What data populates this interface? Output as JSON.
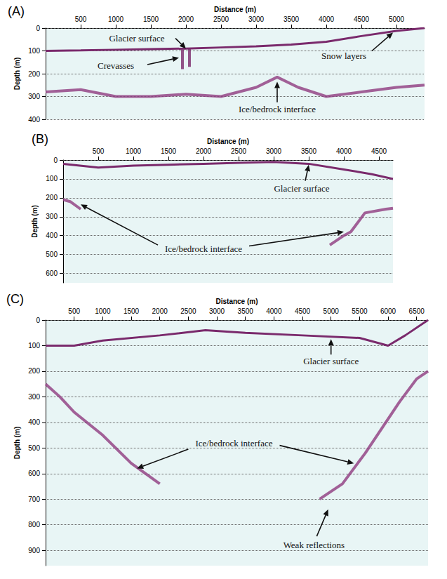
{
  "chart_data": [
    {
      "type": "line",
      "title": "(A)",
      "x_label": "Distance (m)",
      "y_label": "Depth (m)",
      "xlim": [
        0,
        5400
      ],
      "xticks": [
        500,
        1000,
        1500,
        2000,
        2500,
        3000,
        3500,
        4000,
        4500,
        5000
      ],
      "ylim": [
        0,
        400
      ],
      "yticks": [
        0,
        100,
        200,
        300,
        400
      ],
      "grid": true,
      "series": [
        {
          "color": "#7a2a6c",
          "x": [
            0,
            500,
            1000,
            1500,
            2000,
            2500,
            3000,
            3500,
            4000,
            4500,
            5000,
            5400
          ],
          "values": [
            100,
            98,
            95,
            92,
            90,
            85,
            80,
            72,
            60,
            35,
            12,
            0
          ]
        },
        {
          "color": "#8e3b7f",
          "x": [
            0,
            500,
            1000,
            1500,
            2000,
            2500,
            3000,
            3300,
            3600,
            4000,
            4500,
            5000,
            5400
          ],
          "values": [
            280,
            270,
            300,
            300,
            290,
            300,
            260,
            215,
            260,
            300,
            280,
            260,
            250
          ]
        },
        {
          "color": "#7a2a6c",
          "x": [
            1950,
            1950
          ],
          "values": [
            95,
            180
          ]
        },
        {
          "color": "#7a2a6c",
          "x": [
            2050,
            2050
          ],
          "values": [
            92,
            170
          ]
        }
      ],
      "annotations": [
        {
          "text": "Glacier surface",
          "x": 1300,
          "y": 45,
          "arrows": [
            [
              [
                1850,
                45
              ],
              [
                2000,
                90
              ]
            ]
          ]
        },
        {
          "text": "Crevasses",
          "x": 1000,
          "y": 165,
          "arrows": [
            [
              [
                1450,
                160
              ],
              [
                1900,
                130
              ]
            ]
          ]
        },
        {
          "text": "Ice/bedrock interface",
          "x": 3300,
          "y": 355,
          "arrows": [
            [
              [
                3300,
                325
              ],
              [
                3300,
                235
              ]
            ]
          ]
        },
        {
          "text": "Snow layers",
          "x": 4250,
          "y": 120,
          "arrows": [
            [
              [
                4650,
                100
              ],
              [
                4950,
                20
              ]
            ]
          ]
        }
      ]
    },
    {
      "type": "line",
      "title": "(B)",
      "x_label": "Distance (m)",
      "y_label": "Depth (m)",
      "xlim": [
        0,
        4700
      ],
      "xticks": [
        500,
        1000,
        1500,
        2000,
        2500,
        3000,
        3500,
        4000,
        4500
      ],
      "ylim": [
        0,
        650
      ],
      "yticks": [
        0,
        100,
        200,
        300,
        400,
        500,
        600
      ],
      "grid": true,
      "series": [
        {
          "color": "#7a2a6c",
          "x": [
            0,
            500,
            1000,
            1500,
            2000,
            2500,
            3000,
            3500,
            4000,
            4400,
            4700
          ],
          "values": [
            20,
            40,
            30,
            25,
            20,
            15,
            10,
            20,
            50,
            75,
            100
          ]
        },
        {
          "color": "#8e3b7f",
          "x": [
            0,
            100,
            250
          ],
          "values": [
            210,
            220,
            260
          ]
        },
        {
          "color": "#8e3b7f",
          "x": [
            3800,
            4000,
            4100,
            4300,
            4600,
            4700
          ],
          "values": [
            450,
            400,
            380,
            280,
            260,
            255
          ]
        }
      ],
      "annotations": [
        {
          "text": "Glacier surface",
          "x": 3400,
          "y": 150,
          "arrows": [
            [
              [
                3450,
                110
              ],
              [
                3500,
                25
              ]
            ]
          ]
        },
        {
          "text": "Ice/bedrock interface",
          "x": 2000,
          "y": 470,
          "arrows": [
            [
              [
                1350,
                450
              ],
              [
                250,
                235
              ]
            ],
            [
              [
                2650,
                455
              ],
              [
                4000,
                380
              ]
            ]
          ]
        }
      ]
    },
    {
      "type": "line",
      "title": "(C)",
      "x_label": "Distance (m)",
      "y_label": "Depth (m)",
      "xlim": [
        0,
        6700
      ],
      "xticks": [
        500,
        1000,
        1500,
        2000,
        2500,
        3000,
        3500,
        4000,
        4500,
        5000,
        5500,
        6000,
        6500
      ],
      "ylim": [
        0,
        960
      ],
      "yticks": [
        0,
        100,
        200,
        300,
        400,
        500,
        600,
        700,
        800,
        900
      ],
      "grid": true,
      "series": [
        {
          "color": "#7a2a6c",
          "x": [
            0,
            500,
            1000,
            2000,
            2800,
            3500,
            4500,
            5500,
            6000,
            6300,
            6700
          ],
          "values": [
            100,
            100,
            80,
            60,
            40,
            50,
            60,
            70,
            100,
            60,
            0
          ]
        },
        {
          "color": "#8e3b7f",
          "x": [
            0,
            250,
            500,
            1000,
            1500,
            2000
          ],
          "values": [
            250,
            300,
            360,
            450,
            560,
            640
          ]
        },
        {
          "color": "#8e3b7f",
          "x": [
            4800,
            5200,
            5600,
            5900,
            6200,
            6500,
            6700
          ],
          "values": [
            700,
            640,
            520,
            420,
            320,
            230,
            200
          ]
        }
      ],
      "annotations": [
        {
          "text": "Glacier surface",
          "x": 5000,
          "y": 160,
          "arrows": [
            [
              [
                5000,
                135
              ],
              [
                5000,
                75
              ]
            ]
          ]
        },
        {
          "text": "Ice/bedrock interface",
          "x": 3300,
          "y": 480,
          "arrows": [
            [
              [
                2500,
                505
              ],
              [
                1600,
                580
              ]
            ],
            [
              [
                4100,
                490
              ],
              [
                5400,
                560
              ]
            ]
          ]
        },
        {
          "text": "Weak reflections",
          "x": 4700,
          "y": 880,
          "arrows": [
            [
              [
                4750,
                845
              ],
              [
                4950,
                740
              ]
            ]
          ]
        }
      ]
    }
  ]
}
